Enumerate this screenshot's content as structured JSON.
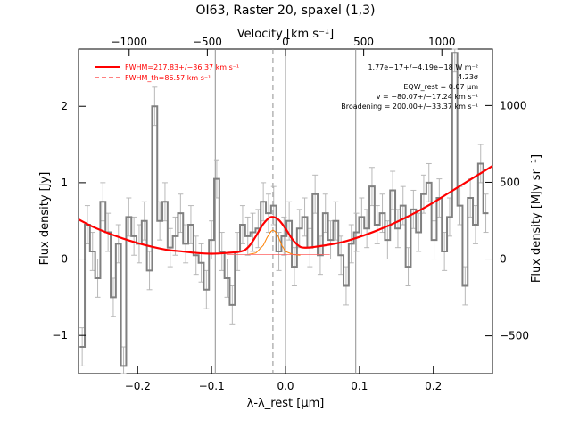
{
  "chart_data": {
    "type": "line",
    "title": "OI63, Raster 20, spaxel (1,3)",
    "xlabel": "λ-λ_rest [μm]",
    "ylabel": "Flux density [Jy]",
    "top_xlabel": "Velocity [km s⁻¹]",
    "right_ylabel": "Flux density [MJy sr⁻¹]",
    "xlim": [
      -0.28,
      0.28
    ],
    "ylim": [
      -1.5,
      2.75
    ],
    "x_ticks": [
      -0.2,
      -0.1,
      0.0,
      0.1,
      0.2
    ],
    "x_tick_labels": [
      "−0.2",
      "−0.1",
      "0.0",
      "0.1",
      "0.2"
    ],
    "y_ticks": [
      -1,
      0,
      1,
      2
    ],
    "y_tick_labels": [
      "−1",
      "0",
      "1",
      "2"
    ],
    "top_ticks": [
      -1000,
      -500,
      0,
      500,
      1000
    ],
    "top_tick_labels": [
      "−1000",
      "−500",
      "0",
      "500",
      "1000"
    ],
    "right_ticks": [
      -500,
      0,
      500,
      1000
    ],
    "right_tick_labels": [
      "−500",
      "0",
      "500",
      "1000"
    ],
    "vlines_solid": [
      -0.095,
      0.0,
      0.095
    ],
    "vline_dashed": -0.017,
    "legend": {
      "position": "top-left",
      "entries": [
        {
          "label": "FWHM=217.83+/−36.37 km s⁻¹",
          "style": "solid"
        },
        {
          "label": "FWHM_th=86.57 km s⁻¹",
          "style": "dashed"
        }
      ]
    },
    "annotations": [
      "1.77e−17+/−4.19e−18 W m⁻²",
      "4.23σ",
      "EQW_rest = 0.07 μm",
      "v = −80.07+/−17.24 km s⁻¹",
      "Broadening = 200.00+/−33.37 km s⁻¹"
    ],
    "colors": {
      "data": "#808080",
      "fit": "#ff0000",
      "component": "#ff8000",
      "grid": "#909090"
    },
    "series": [
      {
        "name": "Data",
        "x": [
          -0.275,
          -0.268,
          -0.261,
          -0.254,
          -0.247,
          -0.24,
          -0.233,
          -0.226,
          -0.219,
          -0.212,
          -0.205,
          -0.198,
          -0.191,
          -0.184,
          -0.177,
          -0.17,
          -0.163,
          -0.156,
          -0.149,
          -0.142,
          -0.135,
          -0.128,
          -0.121,
          -0.114,
          -0.107,
          -0.1,
          -0.093,
          -0.086,
          -0.079,
          -0.072,
          -0.065,
          -0.058,
          -0.051,
          -0.044,
          -0.037,
          -0.03,
          -0.023,
          -0.016,
          -0.009,
          -0.002,
          0.005,
          0.012,
          0.019,
          0.026,
          0.033,
          0.04,
          0.047,
          0.054,
          0.061,
          0.068,
          0.075,
          0.082,
          0.089,
          0.096,
          0.103,
          0.11,
          0.117,
          0.124,
          0.131,
          0.138,
          0.145,
          0.152,
          0.159,
          0.166,
          0.173,
          0.18,
          0.187,
          0.194,
          0.201,
          0.208,
          0.215,
          0.222,
          0.229,
          0.236,
          0.243,
          0.25,
          0.257,
          0.264,
          0.271
        ],
        "y": [
          -1.15,
          0.45,
          0.1,
          -0.25,
          0.75,
          0.35,
          -0.5,
          0.2,
          -1.4,
          0.55,
          0.3,
          0.2,
          0.5,
          -0.15,
          2.0,
          0.5,
          0.75,
          0.15,
          0.3,
          0.6,
          0.2,
          0.45,
          0.05,
          -0.05,
          -0.4,
          0.25,
          1.05,
          0.1,
          -0.25,
          -0.6,
          0.1,
          0.45,
          0.3,
          0.35,
          0.4,
          0.75,
          0.6,
          0.7,
          0.1,
          0.3,
          0.5,
          -0.1,
          0.4,
          0.55,
          0.15,
          0.85,
          0.05,
          0.6,
          0.25,
          0.5,
          0.05,
          -0.35,
          0.2,
          0.35,
          0.55,
          0.4,
          0.95,
          0.45,
          0.6,
          0.25,
          0.9,
          0.4,
          0.7,
          -0.1,
          0.65,
          0.35,
          0.85,
          1.0,
          0.25,
          0.8,
          0.1,
          0.55,
          2.7,
          0.7,
          -0.35,
          0.8,
          0.45,
          1.25,
          0.6
        ],
        "yerr": 0.25
      },
      {
        "name": "Fit",
        "x": [
          -0.28,
          -0.26,
          -0.24,
          -0.22,
          -0.2,
          -0.18,
          -0.16,
          -0.14,
          -0.12,
          -0.1,
          -0.08,
          -0.06,
          -0.05,
          -0.04,
          -0.03,
          -0.02,
          -0.01,
          0.0,
          0.01,
          0.02,
          0.03,
          0.04,
          0.06,
          0.08,
          0.1,
          0.12,
          0.14,
          0.16,
          0.18,
          0.2,
          0.22,
          0.24,
          0.26,
          0.28
        ],
        "y": [
          0.52,
          0.42,
          0.34,
          0.27,
          0.21,
          0.16,
          0.12,
          0.1,
          0.08,
          0.07,
          0.08,
          0.1,
          0.16,
          0.3,
          0.46,
          0.55,
          0.52,
          0.4,
          0.25,
          0.16,
          0.15,
          0.16,
          0.19,
          0.23,
          0.29,
          0.36,
          0.44,
          0.53,
          0.63,
          0.74,
          0.86,
          0.98,
          1.1,
          1.22
        ]
      },
      {
        "name": "Line component",
        "x": [
          -0.05,
          -0.04,
          -0.03,
          -0.025,
          -0.02,
          -0.017,
          -0.014,
          -0.01,
          -0.005,
          0.0,
          0.01,
          0.02
        ],
        "y": [
          0.06,
          0.08,
          0.18,
          0.28,
          0.36,
          0.38,
          0.36,
          0.3,
          0.18,
          0.1,
          0.06,
          0.05
        ]
      }
    ]
  }
}
